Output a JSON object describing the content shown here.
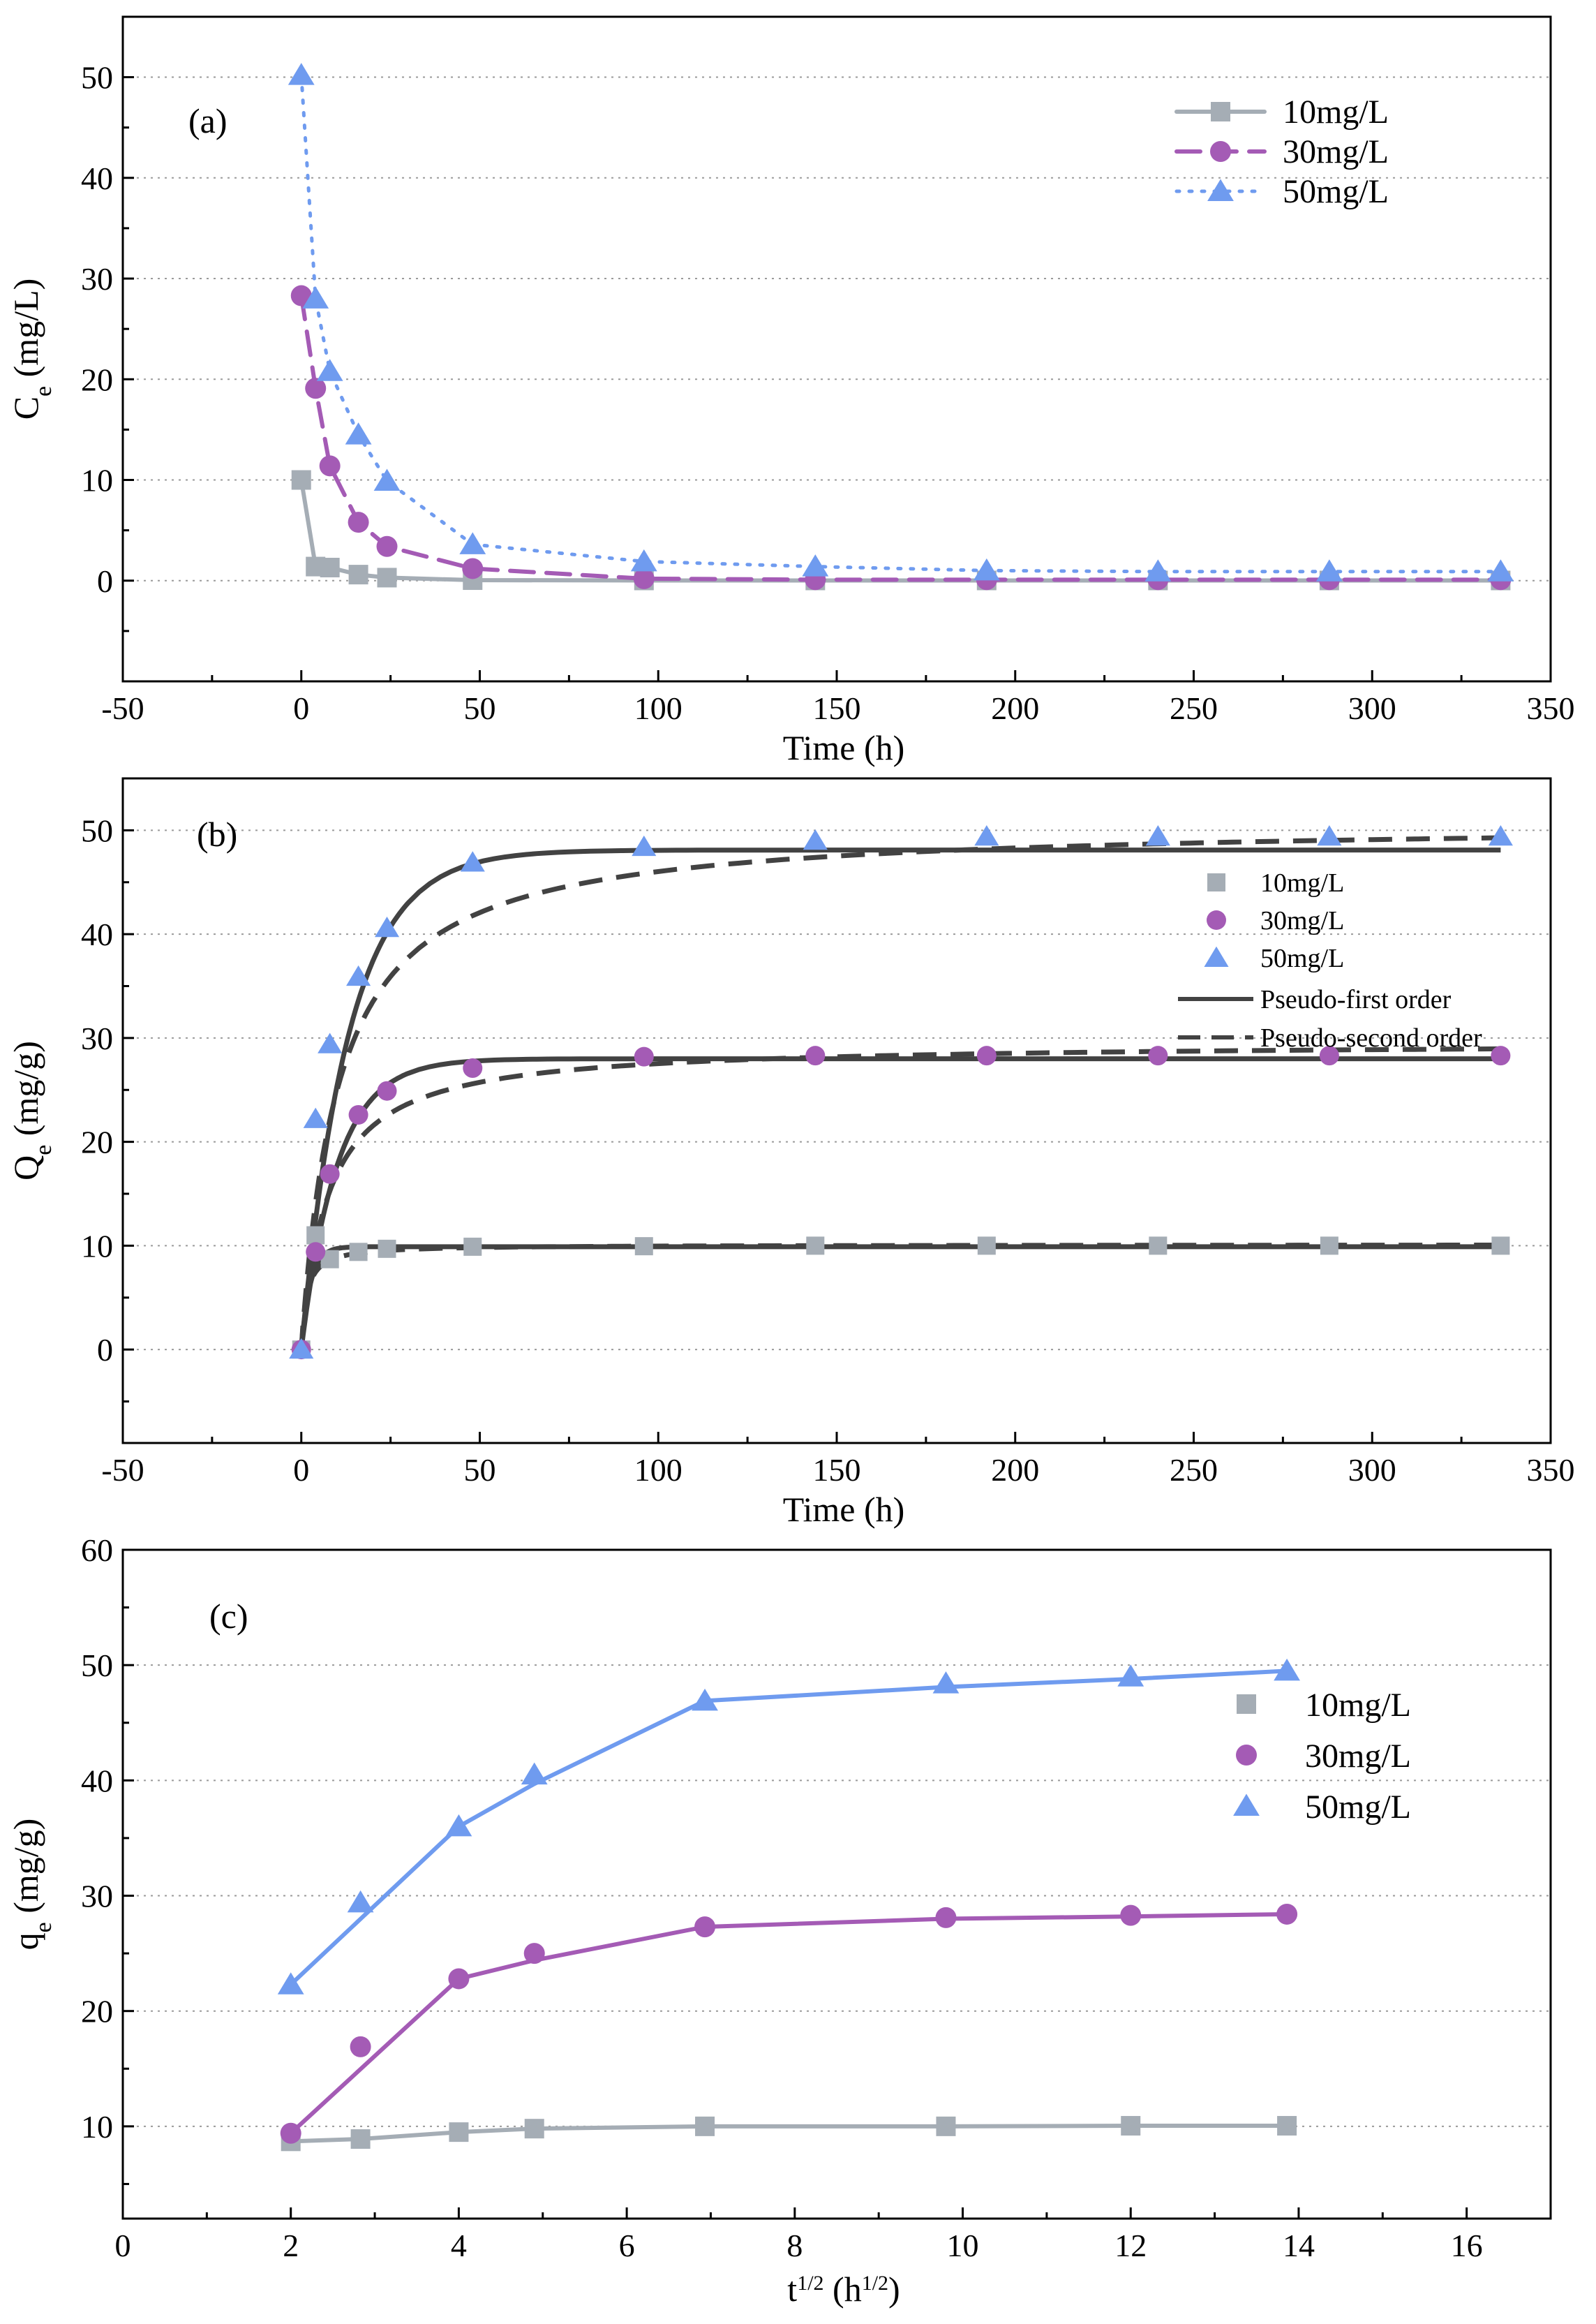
{
  "colors": {
    "c10": "#a5adb5",
    "c30": "#a45bb5",
    "c50": "#6f9bef",
    "fit": "#424242",
    "grid": "#9a9a9a",
    "axis": "#000000"
  },
  "chart_data": [
    {
      "panel": "(a)",
      "type": "line",
      "xlabel": "Time (h)",
      "ylabel": "C_e (mg/L)",
      "ylabel_main": "C",
      "ylabel_sub": "e",
      "ylabel_rest": " (mg/L)",
      "xlim": [
        -50,
        350
      ],
      "ylim": [
        -10,
        56
      ],
      "xticks": [
        -50,
        0,
        50,
        100,
        150,
        200,
        250,
        300,
        350
      ],
      "yticks": [
        0,
        10,
        20,
        30,
        40,
        50
      ],
      "grid": true,
      "legend_position": "top-right",
      "series": [
        {
          "name": "10mg/L",
          "marker": "square",
          "line": "solid",
          "color_key": "c10",
          "x": [
            0,
            4,
            8,
            16,
            24,
            48,
            96,
            144,
            192,
            240,
            288,
            336
          ],
          "y": [
            10,
            1.4,
            1.3,
            0.6,
            0.3,
            0.05,
            0.02,
            0.02,
            0.02,
            0.02,
            0.02,
            0.02
          ]
        },
        {
          "name": "30mg/L",
          "marker": "circle",
          "line": "dashed",
          "color_key": "c30",
          "x": [
            0,
            4,
            8,
            16,
            24,
            48,
            96,
            144,
            192,
            240,
            288,
            336
          ],
          "y": [
            28.3,
            19.1,
            11.4,
            5.8,
            3.4,
            1.2,
            0.2,
            0.1,
            0.1,
            0.1,
            0.1,
            0.1
          ]
        },
        {
          "name": "50mg/L",
          "marker": "triangle",
          "line": "dotted",
          "color_key": "c50",
          "x": [
            0,
            4,
            8,
            16,
            24,
            48,
            96,
            144,
            192,
            240,
            288,
            336
          ],
          "y": [
            50.2,
            28,
            20.8,
            14.5,
            9.9,
            3.6,
            1.9,
            1.4,
            1.0,
            0.9,
            0.9,
            0.9
          ]
        }
      ]
    },
    {
      "panel": "(b)",
      "type": "scatter",
      "xlabel": "Time (h)",
      "ylabel": "Q_e (mg/g)",
      "ylabel_main": "Q",
      "ylabel_sub": "e",
      "ylabel_rest": " (mg/g)",
      "xlim": [
        -50,
        350
      ],
      "ylim": [
        -9,
        55
      ],
      "xticks": [
        -50,
        0,
        50,
        100,
        150,
        200,
        250,
        300,
        350
      ],
      "yticks": [
        0,
        10,
        20,
        30,
        40,
        50
      ],
      "grid": true,
      "legend_position": "right",
      "series": [
        {
          "name": "10mg/L",
          "marker": "square",
          "color_key": "c10",
          "x": [
            0,
            4,
            8,
            16,
            24,
            48,
            96,
            144,
            192,
            240,
            288,
            336
          ],
          "y": [
            0,
            11,
            8.7,
            9.4,
            9.7,
            9.9,
            9.95,
            10,
            10,
            10,
            10,
            10
          ]
        },
        {
          "name": "30mg/L",
          "marker": "circle",
          "color_key": "c30",
          "x": [
            0,
            4,
            8,
            16,
            24,
            48,
            96,
            144,
            192,
            240,
            288,
            336
          ],
          "y": [
            0,
            9.4,
            16.9,
            22.6,
            24.9,
            27.1,
            28.2,
            28.3,
            28.3,
            28.3,
            28.3,
            28.3
          ]
        },
        {
          "name": "50mg/L",
          "marker": "triangle",
          "color_key": "c50",
          "x": [
            0,
            4,
            8,
            16,
            24,
            48,
            96,
            144,
            192,
            240,
            288,
            336
          ],
          "y": [
            0,
            22.2,
            29.4,
            35.9,
            40.6,
            46.9,
            48.4,
            49.0,
            49.4,
            49.4,
            49.4,
            49.4
          ]
        }
      ],
      "fits": [
        {
          "name": "Pseudo-first order",
          "line": "solid",
          "params": [
            {
              "qe": 9.9,
              "k": 0.4
            },
            {
              "qe": 28.0,
              "k": 0.1
            },
            {
              "qe": 48.1,
              "k": 0.075
            }
          ]
        },
        {
          "name": "Pseudo-second order",
          "line": "dashed",
          "params": [
            {
              "qe": 10.1,
              "k": 0.07
            },
            {
              "qe": 29.6,
              "k": 0.0045
            },
            {
              "qe": 50.8,
              "k": 0.0019
            }
          ]
        }
      ]
    },
    {
      "panel": "(c)",
      "type": "line",
      "xlabel": "t^1/2 (h^1/2)",
      "xlabel_t": "t",
      "xlabel_sup1": "1/2",
      "xlabel_mid": " (h",
      "xlabel_sup2": "1/2",
      "xlabel_end": ")",
      "ylabel": "q_e (mg/g)",
      "ylabel_main": "q",
      "ylabel_sub": "e",
      "ylabel_rest": " (mg/g)",
      "xlim": [
        0,
        17
      ],
      "ylim": [
        2,
        60
      ],
      "xticks": [
        0,
        2,
        4,
        6,
        8,
        10,
        12,
        14,
        16
      ],
      "yticks": [
        10,
        20,
        30,
        40,
        50,
        60
      ],
      "grid": true,
      "legend_position": "right",
      "series": [
        {
          "name": "10mg/L",
          "marker": "square",
          "color_key": "c10",
          "x": [
            2,
            2.83,
            4,
            4.9,
            6.93,
            9.8,
            12,
            13.86
          ],
          "y": [
            8.7,
            8.9,
            9.5,
            9.8,
            10.0,
            10.0,
            10.05,
            10.05
          ],
          "fit_x": [
            2,
            2.83,
            4,
            4.9,
            6.93,
            9.8,
            12,
            13.86
          ],
          "fit_y": [
            8.7,
            8.9,
            9.5,
            9.8,
            10.0,
            10.0,
            10.05,
            10.05
          ]
        },
        {
          "name": "30mg/L",
          "marker": "circle",
          "color_key": "c30",
          "x": [
            2,
            2.83,
            4,
            4.9,
            6.93,
            9.8,
            12,
            13.86
          ],
          "y": [
            9.4,
            16.9,
            22.8,
            25.0,
            27.3,
            28.1,
            28.3,
            28.4
          ],
          "fit_x": [
            2,
            4,
            4.9,
            6.93,
            9.8,
            12,
            13.86
          ],
          "fit_y": [
            9.4,
            22.8,
            24.4,
            27.3,
            28.0,
            28.2,
            28.4
          ]
        },
        {
          "name": "50mg/L",
          "marker": "triangle",
          "color_key": "c50",
          "x": [
            2,
            2.83,
            4,
            4.9,
            6.93,
            9.8,
            12,
            13.86
          ],
          "y": [
            22.3,
            29.4,
            36.0,
            40.5,
            46.9,
            48.4,
            49.0,
            49.5
          ],
          "fit_x": [
            2,
            4,
            4.9,
            6.93,
            9.8,
            12,
            13.86
          ],
          "fit_y": [
            22.3,
            36.0,
            39.7,
            46.9,
            48.1,
            48.8,
            49.5
          ]
        }
      ]
    }
  ]
}
